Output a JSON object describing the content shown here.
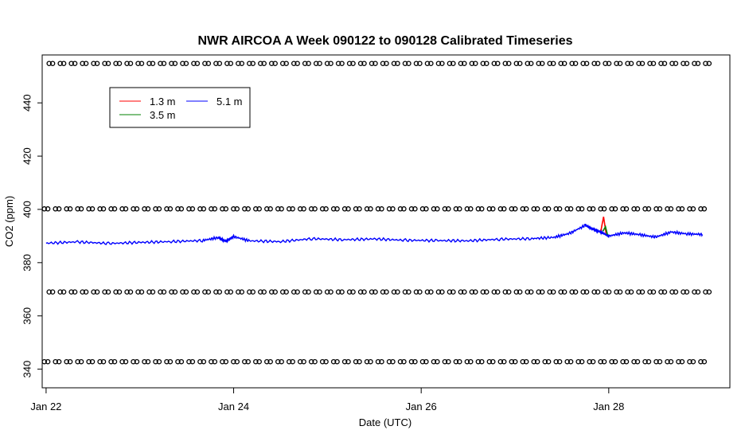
{
  "chart_data": {
    "type": "line",
    "title": "NWR AIRCOA A  Week 090122 to 090128  Calibrated Timeseries",
    "xlabel": "Date (UTC)",
    "ylabel": "CO2 (ppm)",
    "x_unit": "days",
    "xlim": [
      "2009-01-21T23:00",
      "2009-01-29T07:00"
    ],
    "ylim": [
      333,
      458
    ],
    "x_ticks": [
      {
        "x": "2009-01-22",
        "label": "Jan 22"
      },
      {
        "x": "2009-01-24",
        "label": "Jan 24"
      },
      {
        "x": "2009-01-26",
        "label": "Jan 26"
      },
      {
        "x": "2009-01-28",
        "label": "Jan 28"
      }
    ],
    "y_ticks": [
      340,
      360,
      380,
      400,
      420,
      440
    ],
    "grid": false,
    "legend": {
      "placement": "top-left",
      "entries": [
        {
          "label": "1.3 m",
          "color": "#ff0000"
        },
        {
          "label": "3.5 m",
          "color": "#008000"
        },
        {
          "label": "5.1 m",
          "color": "#0000ff"
        }
      ]
    },
    "series": [
      {
        "name": "5.1 m",
        "color": "#0000ff",
        "x": [
          "2009-01-22T00:00",
          "2009-01-22T08:00",
          "2009-01-22T16:00",
          "2009-01-23T00:00",
          "2009-01-23T08:00",
          "2009-01-23T16:00",
          "2009-01-23T20:00",
          "2009-01-23T22:00",
          "2009-01-24T00:00",
          "2009-01-24T04:00",
          "2009-01-24T12:00",
          "2009-01-24T20:00",
          "2009-01-25T04:00",
          "2009-01-25T12:00",
          "2009-01-25T20:00",
          "2009-01-26T04:00",
          "2009-01-26T12:00",
          "2009-01-26T20:00",
          "2009-01-27T04:00",
          "2009-01-27T10:00",
          "2009-01-27T14:00",
          "2009-01-27T18:00",
          "2009-01-27T20:00",
          "2009-01-27T22:00",
          "2009-01-28T00:00",
          "2009-01-28T04:00",
          "2009-01-28T08:00",
          "2009-01-28T12:00",
          "2009-01-28T16:00",
          "2009-01-28T20:00",
          "2009-01-29T00:00"
        ],
        "y": [
          387.3,
          387.8,
          387.2,
          387.6,
          387.9,
          388.3,
          389.4,
          388.0,
          389.8,
          388.2,
          387.9,
          389.0,
          388.6,
          388.9,
          388.4,
          388.3,
          388.2,
          388.8,
          389.0,
          389.5,
          391.0,
          394.0,
          392.5,
          391.5,
          390.0,
          391.2,
          390.5,
          389.6,
          391.5,
          390.8,
          390.6
        ]
      },
      {
        "name": "1.3 m",
        "color": "#ff0000",
        "x": [
          "2009-01-27T22:00",
          "2009-01-27T22:40",
          "2009-01-27T23:20"
        ],
        "y": [
          392.0,
          397.2,
          391.0
        ]
      },
      {
        "name": "3.5 m",
        "color": "#008000",
        "x": [
          "2009-01-27T22:30",
          "2009-01-27T23:10",
          "2009-01-27T23:40"
        ],
        "y": [
          391.8,
          393.5,
          390.5
        ]
      }
    ],
    "markers": [
      {
        "y": 454.8,
        "count": 60
      },
      {
        "y": 400.2,
        "count": 60
      },
      {
        "y": 369.0,
        "count": 60
      },
      {
        "y": 342.8,
        "count": 60
      }
    ]
  }
}
